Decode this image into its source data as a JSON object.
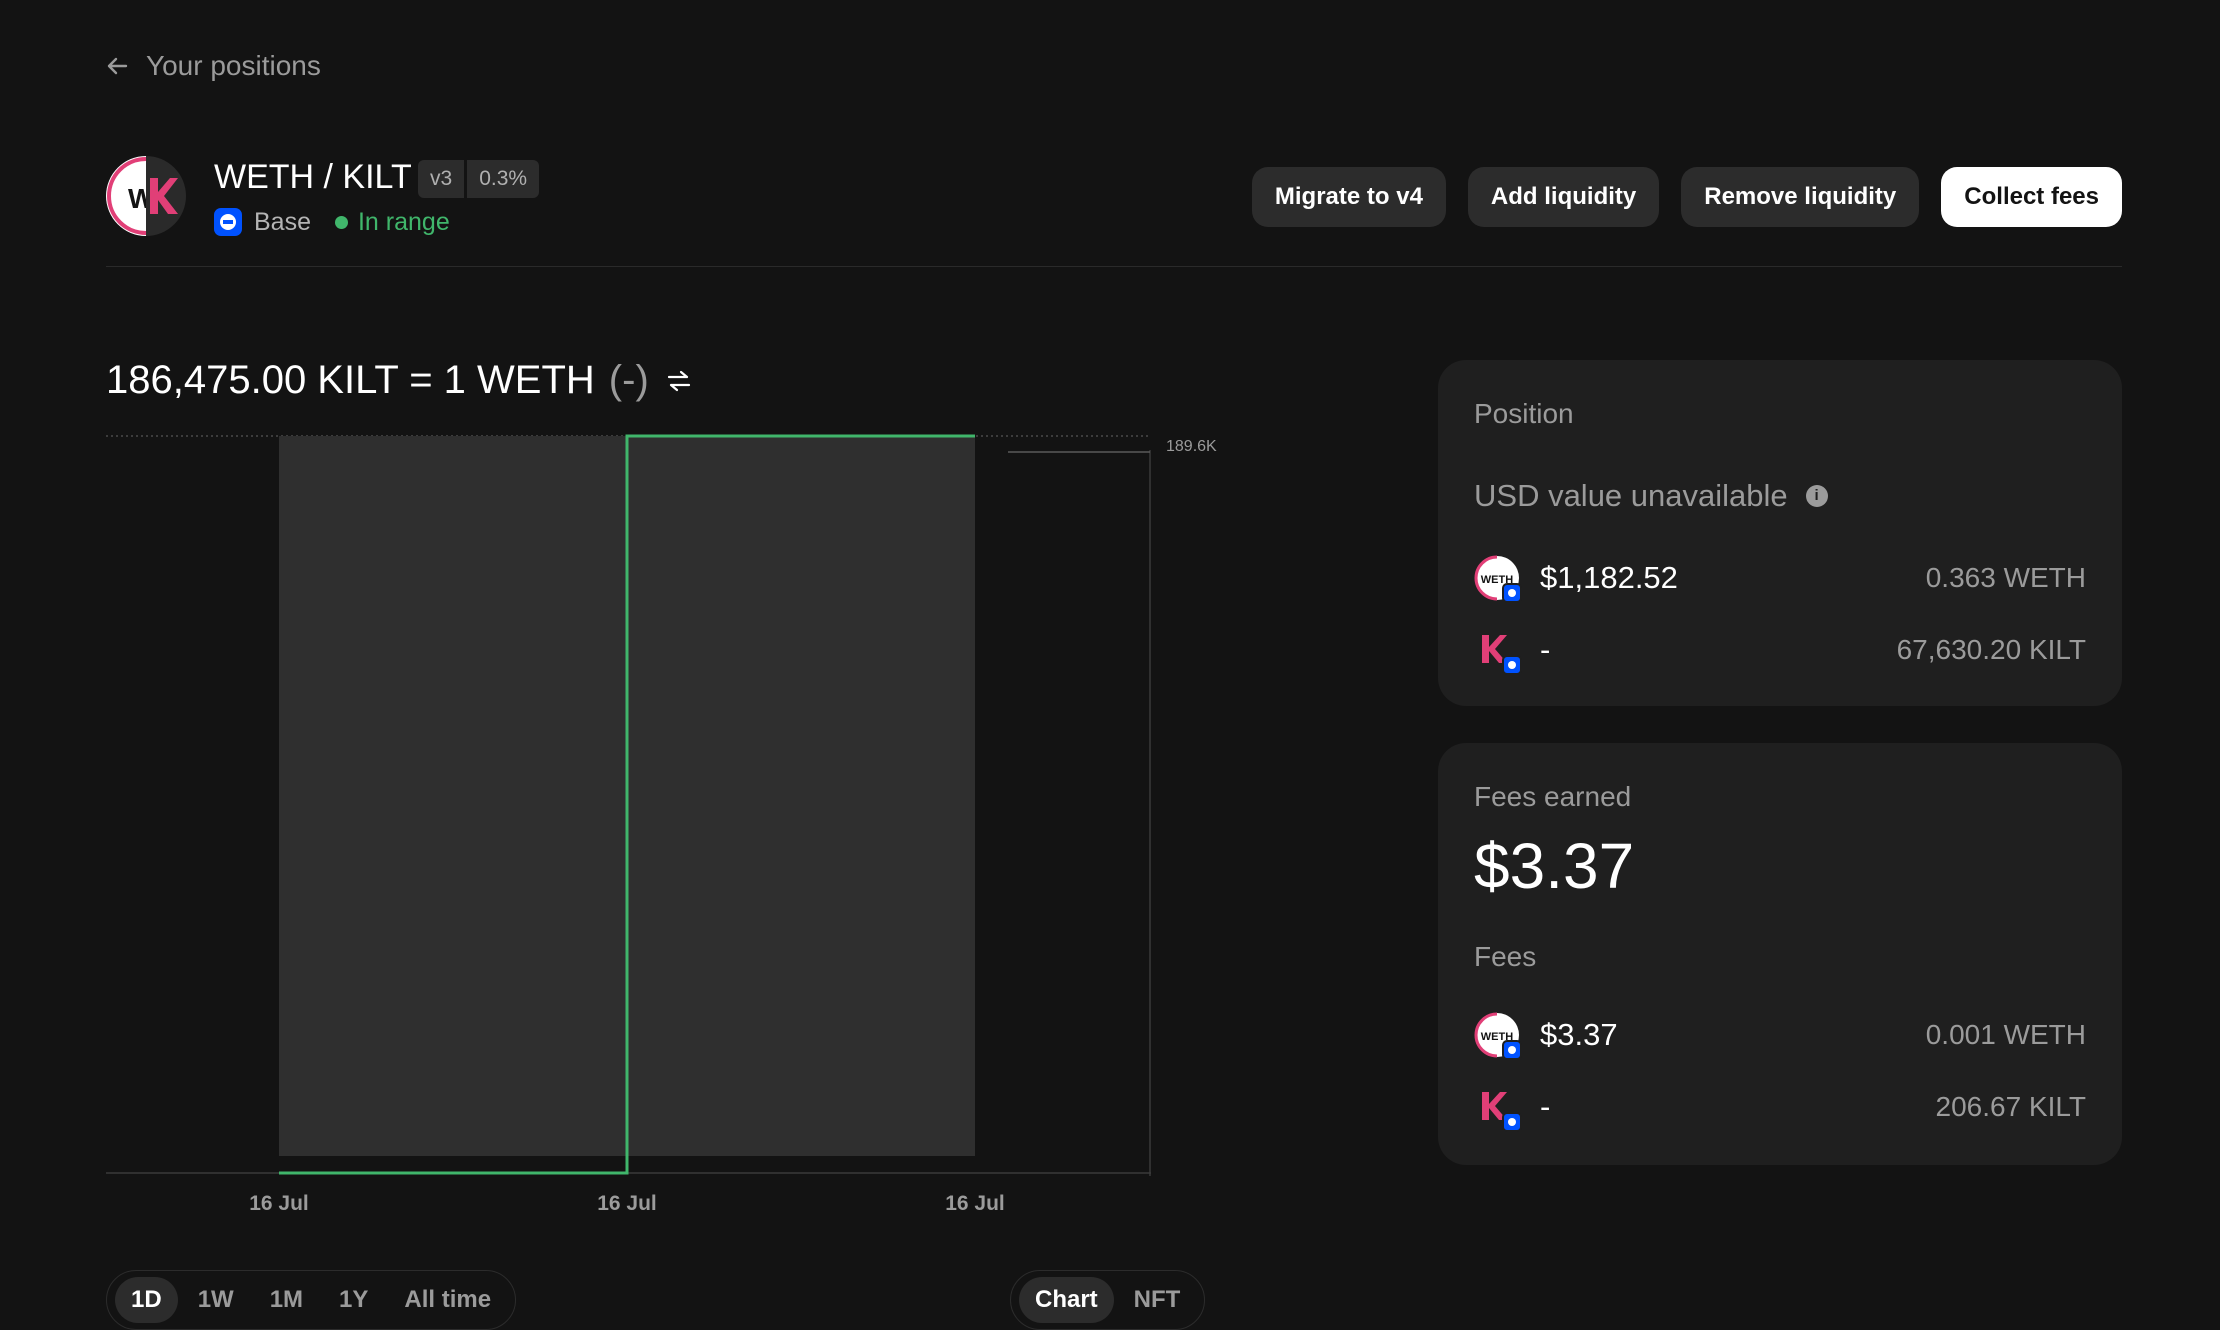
{
  "nav": {
    "back_label": "Your positions"
  },
  "header": {
    "pair": "WETH / KILT",
    "version_badge": "v3",
    "fee_badge": "0.3%",
    "chain": "Base",
    "status": "In range",
    "logo_text": "W"
  },
  "actions": {
    "migrate": "Migrate to v4",
    "add": "Add liquidity",
    "remove": "Remove liquidity",
    "collect": "Collect fees"
  },
  "price": {
    "text": "186,475.00 KILT = 1 WETH",
    "delta": "(-)"
  },
  "chart_data": {
    "type": "area",
    "x_ticks": [
      "16 Jul",
      "16 Jul",
      "16 Jul"
    ],
    "y_max_label": "189.6K",
    "price_series": [
      {
        "x": 0,
        "y": 0
      },
      {
        "x": 1,
        "y": 0
      },
      {
        "x": 1,
        "y": 189.6
      },
      {
        "x": 2,
        "y": 189.6
      }
    ],
    "grid": false
  },
  "timeframes": {
    "options": [
      "1D",
      "1W",
      "1M",
      "1Y",
      "All time"
    ],
    "selected": "1D"
  },
  "views": {
    "options": [
      "Chart",
      "NFT"
    ],
    "selected": "Chart"
  },
  "position_card": {
    "title": "Position",
    "usd_status": "USD value unavailable",
    "tokens": [
      {
        "usd": "$1,182.52",
        "amount": "0.363 WETH",
        "icon": "weth-icon",
        "icon_text": "WETH"
      },
      {
        "usd": "-",
        "amount": "67,630.20 KILT",
        "icon": "kilt-icon"
      }
    ]
  },
  "fees_card": {
    "title": "Fees earned",
    "total": "$3.37",
    "sub_title": "Fees",
    "tokens": [
      {
        "usd": "$3.37",
        "amount": "0.001 WETH",
        "icon": "weth-icon",
        "icon_text": "WETH"
      },
      {
        "usd": "-",
        "amount": "206.67 KILT",
        "icon": "kilt-icon"
      }
    ]
  },
  "colors": {
    "background": "#131313",
    "card": "#1f1f1f",
    "accent_green": "#40b66b",
    "kilt_pink": "#e13f77",
    "base_blue": "#0052ff"
  }
}
